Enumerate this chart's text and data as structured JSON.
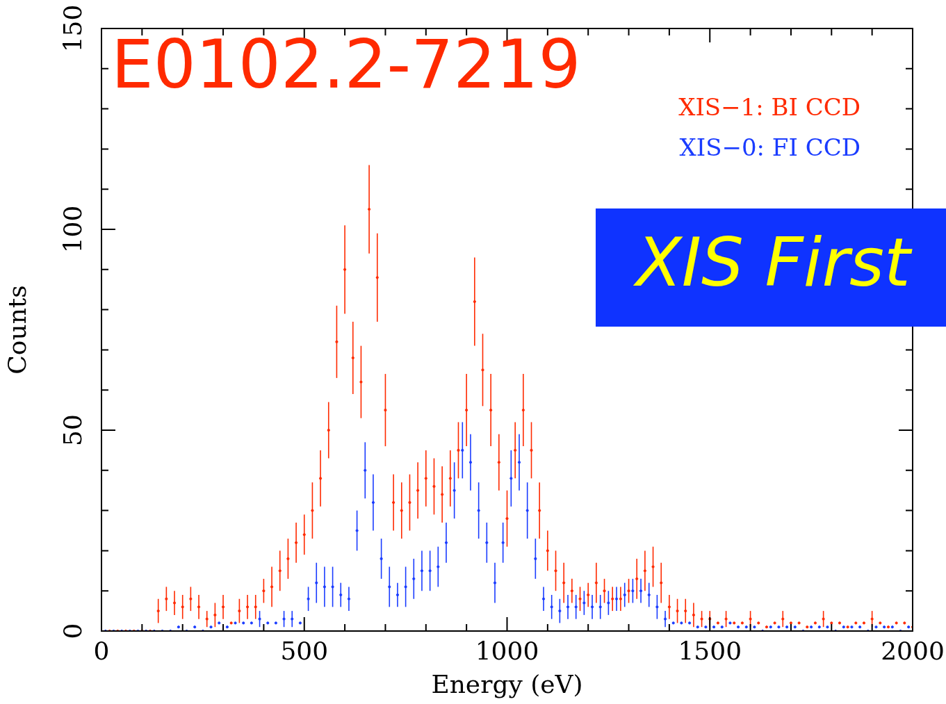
{
  "chart_data": {
    "type": "scatter",
    "title": "E0102.2-7219",
    "xlabel": "Energy (eV)",
    "ylabel": "Counts",
    "annotations": [
      "XIS First"
    ],
    "x": [
      20,
      40,
      60,
      80,
      100,
      120,
      140,
      160,
      180,
      200,
      220,
      240,
      260,
      280,
      300,
      320,
      340,
      360,
      380,
      400,
      420,
      440,
      460,
      480,
      500,
      520,
      540,
      560,
      580,
      600,
      620,
      640,
      660,
      680,
      700,
      720,
      740,
      760,
      780,
      800,
      820,
      840,
      860,
      880,
      900,
      920,
      940,
      960,
      980,
      1000,
      1020,
      1040,
      1060,
      1080,
      1100,
      1120,
      1140,
      1160,
      1180,
      1200,
      1220,
      1240,
      1260,
      1280,
      1300,
      1320,
      1340,
      1360,
      1380,
      1400,
      1420,
      1440,
      1460,
      1480,
      1500,
      1520,
      1540,
      1560,
      1580,
      1600,
      1620,
      1640,
      1660,
      1680,
      1700,
      1720,
      1740,
      1760,
      1780,
      1800,
      1820,
      1840,
      1860,
      1880,
      1900,
      1920,
      1940,
      1960,
      1980,
      2000
    ],
    "series": [
      {
        "name": "XIS−1: BI CCD",
        "color": "#ff2a00",
        "values": [
          0,
          0,
          0,
          0,
          0,
          0,
          5,
          8,
          7,
          6,
          8,
          6,
          3,
          4,
          6,
          2,
          5,
          6,
          6,
          10,
          11,
          15,
          18,
          22,
          24,
          30,
          38,
          50,
          72,
          90,
          68,
          62,
          105,
          88,
          55,
          32,
          30,
          32,
          35,
          38,
          36,
          34,
          38,
          45,
          55,
          82,
          65,
          55,
          42,
          28,
          45,
          55,
          45,
          30,
          20,
          15,
          12,
          10,
          8,
          9,
          12,
          10,
          8,
          8,
          10,
          13,
          15,
          16,
          12,
          6,
          5,
          5,
          4,
          3,
          3,
          2,
          3,
          2,
          2,
          3,
          2,
          1,
          2,
          3,
          2,
          2,
          1,
          2,
          3,
          2,
          2,
          1,
          2,
          2,
          3,
          2,
          1,
          2,
          2,
          1
        ],
        "errors": [
          null,
          null,
          null,
          null,
          null,
          null,
          3,
          3,
          3,
          3,
          3,
          3,
          2,
          3,
          3,
          null,
          3,
          3,
          3,
          3,
          5,
          5,
          5,
          5,
          5,
          7,
          7,
          7,
          9,
          11,
          9,
          9,
          11,
          11,
          9,
          7,
          7,
          7,
          7,
          7,
          7,
          7,
          7,
          7,
          9,
          11,
          9,
          9,
          7,
          7,
          7,
          9,
          7,
          7,
          5,
          5,
          5,
          3,
          3,
          3,
          5,
          3,
          3,
          3,
          3,
          5,
          5,
          5,
          5,
          3,
          3,
          3,
          3,
          2,
          2,
          null,
          2,
          null,
          null,
          2,
          null,
          null,
          null,
          2,
          null,
          null,
          null,
          null,
          2,
          null,
          null,
          null,
          null,
          null,
          2,
          null,
          null,
          null,
          null,
          null
        ]
      },
      {
        "name": "XIS−0: FI CCD",
        "color": "#1a3cff",
        "x": [
          10,
          30,
          50,
          70,
          90,
          110,
          130,
          150,
          170,
          190,
          210,
          230,
          250,
          270,
          290,
          310,
          330,
          350,
          370,
          390,
          410,
          430,
          450,
          470,
          490,
          510,
          530,
          550,
          570,
          590,
          610,
          630,
          650,
          670,
          690,
          710,
          730,
          750,
          770,
          790,
          810,
          830,
          850,
          870,
          890,
          910,
          930,
          950,
          970,
          990,
          1010,
          1030,
          1050,
          1070,
          1090,
          1110,
          1130,
          1150,
          1170,
          1190,
          1210,
          1230,
          1250,
          1270,
          1290,
          1310,
          1330,
          1350,
          1370,
          1390,
          1410,
          1430,
          1450,
          1470,
          1490,
          1510,
          1530,
          1550,
          1570,
          1590,
          1610,
          1630,
          1650,
          1670,
          1690,
          1710,
          1730,
          1750,
          1770,
          1790,
          1810,
          1830,
          1850,
          1870,
          1890,
          1910,
          1930,
          1950,
          1970,
          1990
        ],
        "values": [
          0,
          0,
          0,
          0,
          0,
          0,
          0,
          0,
          0,
          1,
          0,
          1,
          0,
          1,
          2,
          1,
          2,
          2,
          2,
          3,
          2,
          2,
          3,
          3,
          2,
          8,
          12,
          11,
          11,
          9,
          8,
          25,
          40,
          32,
          18,
          11,
          9,
          11,
          13,
          15,
          15,
          16,
          22,
          35,
          45,
          42,
          30,
          22,
          12,
          22,
          38,
          42,
          30,
          18,
          8,
          6,
          5,
          6,
          6,
          7,
          6,
          6,
          7,
          8,
          9,
          10,
          10,
          9,
          6,
          3,
          2,
          2,
          2,
          1,
          1,
          1,
          1,
          2,
          1,
          1,
          1,
          0,
          1,
          1,
          1,
          1,
          0,
          1,
          1,
          1,
          0,
          1,
          1,
          1,
          0,
          1,
          1,
          1,
          0,
          1
        ],
        "errors": [
          null,
          null,
          null,
          null,
          null,
          null,
          null,
          null,
          null,
          null,
          null,
          null,
          null,
          null,
          null,
          null,
          null,
          null,
          null,
          2,
          null,
          null,
          2,
          2,
          null,
          3,
          5,
          5,
          5,
          3,
          3,
          5,
          7,
          7,
          5,
          5,
          3,
          5,
          5,
          5,
          5,
          5,
          5,
          7,
          7,
          7,
          7,
          5,
          5,
          5,
          7,
          7,
          7,
          5,
          3,
          3,
          3,
          3,
          3,
          3,
          3,
          3,
          3,
          3,
          3,
          3,
          3,
          3,
          3,
          2,
          null,
          null,
          null,
          null,
          null,
          null,
          null,
          null,
          null,
          null,
          null,
          null,
          null,
          null,
          null,
          null,
          null,
          null,
          null,
          null,
          null,
          null,
          null,
          null,
          null,
          null,
          null,
          null,
          null,
          null
        ]
      }
    ],
    "xlim": [
      0,
      2000
    ],
    "xticks": [
      0,
      {
        "value": 100,
        "label": null
      },
      {
        "value": 200,
        "label": null
      },
      {
        "value": 300,
        "label": null
      },
      {
        "value": 400,
        "label": null
      },
      500,
      {
        "value": 600,
        "label": null
      },
      {
        "value": 700,
        "label": null
      },
      {
        "value": 800,
        "label": null
      },
      {
        "value": 900,
        "label": null
      },
      1000,
      {
        "value": 1100,
        "label": null
      },
      {
        "value": 1200,
        "label": null
      },
      {
        "value": 1300,
        "label": null
      },
      {
        "value": 1400,
        "label": null
      },
      1500,
      {
        "value": 1600,
        "label": null
      },
      {
        "value": 1700,
        "label": null
      },
      {
        "value": 1800,
        "label": null
      },
      {
        "value": 1900,
        "label": null
      },
      2000
    ],
    "ylim": [
      0,
      150
    ],
    "yticks": [
      0,
      {
        "value": 10,
        "label": null
      },
      {
        "value": 20,
        "label": null
      },
      {
        "value": 30,
        "label": null
      },
      {
        "value": 40,
        "label": null
      },
      50,
      {
        "value": 60,
        "label": null
      },
      {
        "value": 70,
        "label": null
      },
      {
        "value": 80,
        "label": null
      },
      {
        "value": 90,
        "label": null
      },
      100,
      {
        "value": 110,
        "label": null
      },
      {
        "value": 120,
        "label": null
      },
      {
        "value": 130,
        "label": null
      },
      {
        "value": 140,
        "label": null
      },
      150
    ],
    "marker": "circle",
    "legend": "top right"
  }
}
